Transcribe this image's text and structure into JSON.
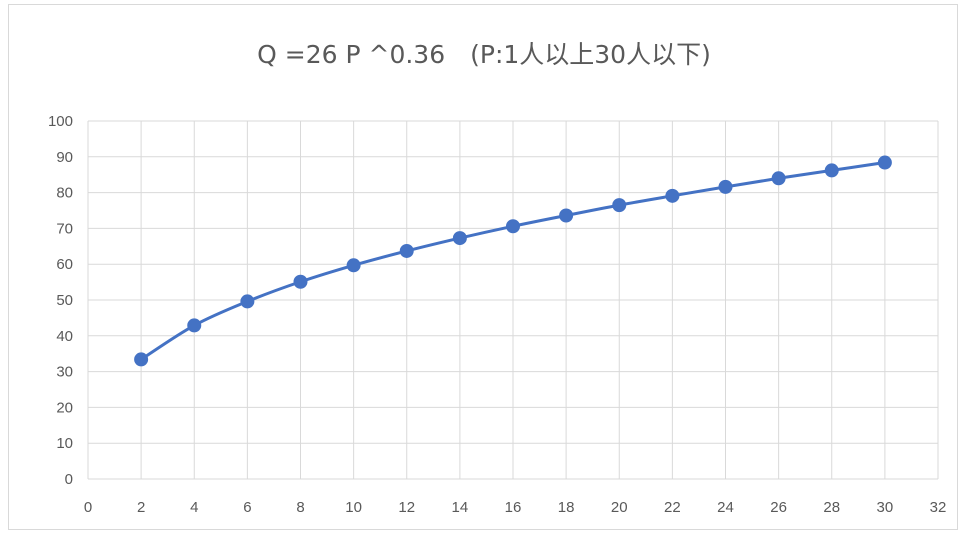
{
  "chart_data": {
    "type": "line",
    "title": "Q =26 P ^0.36　(P:1人以上30人以下)",
    "xlabel": "",
    "ylabel": "",
    "xlim": [
      0,
      32
    ],
    "ylim": [
      0,
      100
    ],
    "x_ticks": [
      "0",
      "2",
      "4",
      "6",
      "8",
      "10",
      "12",
      "14",
      "16",
      "18",
      "20",
      "22",
      "24",
      "26",
      "28",
      "30",
      "32"
    ],
    "y_ticks": [
      "0",
      "10",
      "20",
      "30",
      "40",
      "50",
      "60",
      "70",
      "80",
      "90",
      "100"
    ],
    "grid": true,
    "legend": "none",
    "markers": true,
    "smooth": true,
    "series": [
      {
        "color": "#4472c4",
        "x": [
          2,
          4,
          6,
          8,
          10,
          12,
          14,
          16,
          18,
          20,
          22,
          24,
          26,
          28,
          30
        ],
        "y": [
          33.4,
          42.9,
          49.6,
          55.1,
          59.7,
          63.7,
          67.3,
          70.6,
          73.6,
          76.5,
          79.1,
          81.6,
          84.0,
          86.2,
          88.4
        ]
      }
    ]
  }
}
